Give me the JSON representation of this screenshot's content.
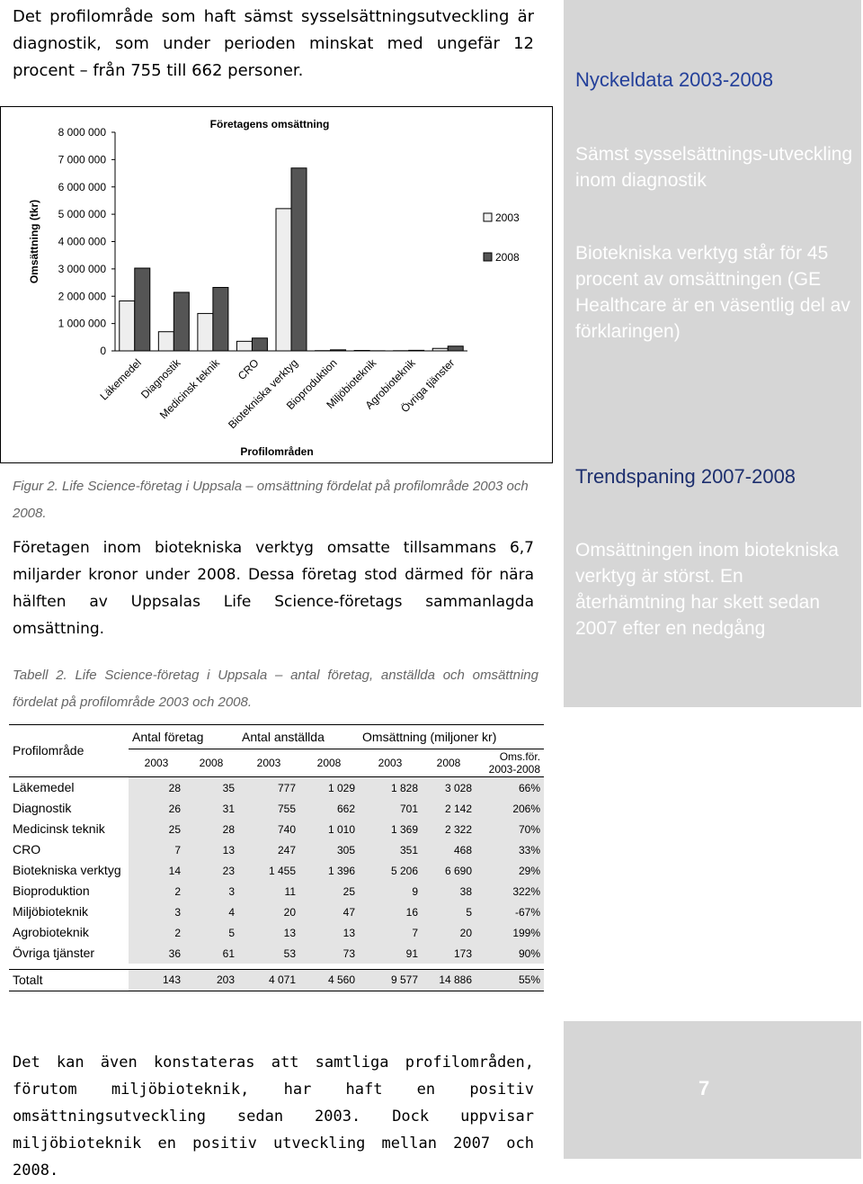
{
  "intro": "Det profilområde som haft sämst sysselsättningsutveckling är diagnostik, som under perioden minskat med ungefär 12 procent – från 755 till 662 personer.",
  "chart_data": {
    "type": "bar",
    "title": "Företagens omsättning",
    "y_label": "Omsättning (tkr)",
    "x_label": "Profilområden",
    "categories": [
      "Läkemedel",
      "Diagnostik",
      "Medicinsk teknik",
      "CRO",
      "Biotekniska verktyg",
      "Bioproduktion",
      "Miljöbioteknik",
      "Agrobioteknik",
      "Övriga tjänster"
    ],
    "series": [
      {
        "name": "2003",
        "color": "#eeeeee",
        "values": [
          1828000,
          701000,
          1369000,
          351000,
          5206000,
          9000,
          16000,
          7000,
          91000
        ]
      },
      {
        "name": "2008",
        "color": "#555555",
        "values": [
          3028000,
          2142000,
          2322000,
          468000,
          6690000,
          38000,
          5000,
          20000,
          173000
        ]
      }
    ],
    "ylim": [
      0,
      8000000
    ],
    "yticks": [
      0,
      {
        "value": 1000000,
        "label": "1 000 000"
      },
      {
        "value": 2000000,
        "label": "2 000 000"
      },
      {
        "value": 3000000,
        "label": "3 000 000"
      },
      {
        "value": 4000000,
        "label": "4 000 000"
      },
      {
        "value": 5000000,
        "label": "5 000 000"
      },
      {
        "value": 6000000,
        "label": "6 000 000"
      },
      {
        "value": 7000000,
        "label": "7 000 000"
      },
      {
        "value": 8000000,
        "label": "8 000 000"
      }
    ],
    "legend": "right"
  },
  "figure_caption": "Figur 2. Life Science-företag i Uppsala – omsättning fördelat på profilområde 2003 och 2008.",
  "paragraph": "Företagen inom biotekniska verktyg omsatte tillsammans 6,7 miljarder kronor under 2008. Dessa företag stod därmed för nära hälften av Uppsalas Life Science-företags sammanlagda omsättning.",
  "table_caption": "Tabell 2. Life Science-företag i Uppsala – antal företag, anställda och omsättning fördelat på profilområde 2003 och 2008.",
  "table": {
    "row_header": "Profilområde",
    "groups": [
      "Antal företag",
      "Antal anställda",
      "Omsättning (miljoner kr)"
    ],
    "columns": [
      "2003",
      "2008",
      "2003",
      "2008",
      "2003",
      "2008",
      "Oms.för. 2003-2008"
    ],
    "rows": [
      [
        "Läkemedel",
        "28",
        "35",
        "777",
        "1 029",
        "1 828",
        "3 028",
        "66%"
      ],
      [
        "Diagnostik",
        "26",
        "31",
        "755",
        "662",
        "701",
        "2 142",
        "206%"
      ],
      [
        "Medicinsk teknik",
        "25",
        "28",
        "740",
        "1 010",
        "1 369",
        "2 322",
        "70%"
      ],
      [
        "CRO",
        "7",
        "13",
        "247",
        "305",
        "351",
        "468",
        "33%"
      ],
      [
        "Biotekniska verktyg",
        "14",
        "23",
        "1 455",
        "1 396",
        "5 206",
        "6 690",
        "29%"
      ],
      [
        "Bioproduktion",
        "2",
        "3",
        "11",
        "25",
        "9",
        "38",
        "322%"
      ],
      [
        "Miljöbioteknik",
        "3",
        "4",
        "20",
        "47",
        "16",
        "5",
        "-67%"
      ],
      [
        "Agrobioteknik",
        "2",
        "5",
        "13",
        "13",
        "7",
        "20",
        "199%"
      ],
      [
        "Övriga tjänster",
        "36",
        "61",
        "53",
        "73",
        "91",
        "173",
        "90%"
      ]
    ],
    "total": [
      "Totalt",
      "143",
      "203",
      "4 071",
      "4 560",
      "9 577",
      "14 886",
      "55%"
    ]
  },
  "closing": "Det kan även konstateras att samtliga profilområden, förutom miljöbioteknik, har haft en positiv omsättningsutveckling sedan 2003. Dock uppvisar miljöbioteknik en positiv utveckling mellan 2007 och 2008.",
  "sidebar": {
    "title": "Nyckeldata 2003-2008",
    "items": [
      "Sämst sysselsättnings-utveckling inom diagnostik",
      "Biotekniska verktyg står för 45 procent av omsättningen (GE Healthcare är en väsentlig del av förklaringen)"
    ],
    "trend_title": "Trendspaning 2007-2008",
    "trend_text": "Omsättningen inom biotekniska verktyg är störst. En återhämtning har skett sedan 2007 efter en nedgång"
  },
  "page_number": "7"
}
